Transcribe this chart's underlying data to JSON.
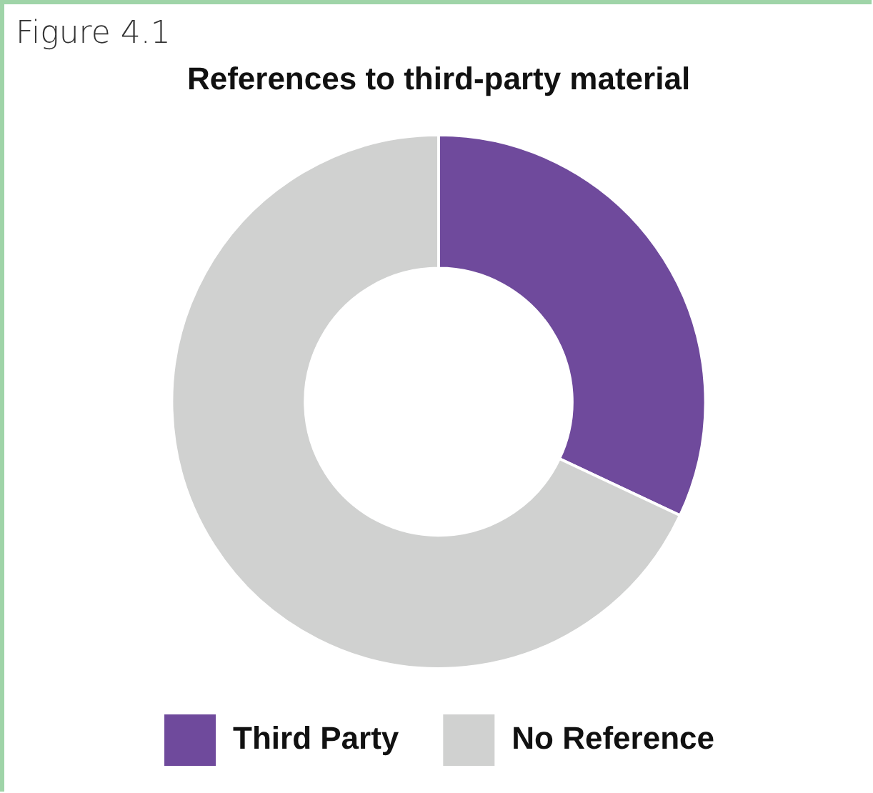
{
  "chart_data": {
    "type": "donut",
    "title": "References to third-party material",
    "annotations": [
      "Figure 4.1"
    ],
    "categories": [
      "Third Party",
      "No Reference"
    ],
    "values": [
      32,
      68
    ],
    "colors": [
      "#6f4a9c",
      "#d0d1d0"
    ],
    "legend": "bottom"
  }
}
